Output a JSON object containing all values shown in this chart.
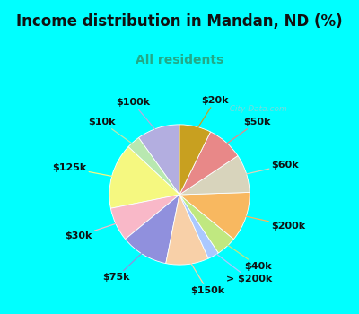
{
  "title": "Income distribution in Mandan, ND (%)",
  "subtitle": "All residents",
  "title_color": "#111111",
  "subtitle_color": "#22aa88",
  "bg_cyan": "#00FFFF",
  "bg_inner": "#e8f5ee",
  "watermark": "  City-Data.com",
  "slices": [
    {
      "label": "$100k",
      "value": 9.5,
      "color": "#b3aee0"
    },
    {
      "label": "$10k",
      "value": 3.0,
      "color": "#b8e8b0"
    },
    {
      "label": "$125k",
      "value": 14.5,
      "color": "#f5f880"
    },
    {
      "label": "$30k",
      "value": 7.5,
      "color": "#f9b8c8"
    },
    {
      "label": "$75k",
      "value": 10.5,
      "color": "#9090dd"
    },
    {
      "label": "$150k",
      "value": 9.5,
      "color": "#f8d0a8"
    },
    {
      "label": "> $200k",
      "value": 2.5,
      "color": "#aac8ff"
    },
    {
      "label": "$40k",
      "value": 4.5,
      "color": "#c0e880"
    },
    {
      "label": "$200k",
      "value": 11.0,
      "color": "#f8b860"
    },
    {
      "label": "$60k",
      "value": 8.5,
      "color": "#d8d4bc"
    },
    {
      "label": "$50k",
      "value": 8.0,
      "color": "#e88888"
    },
    {
      "label": "$20k",
      "value": 7.0,
      "color": "#c8a020"
    }
  ],
  "label_fontsize": 8,
  "title_fontsize": 12,
  "subtitle_fontsize": 10
}
